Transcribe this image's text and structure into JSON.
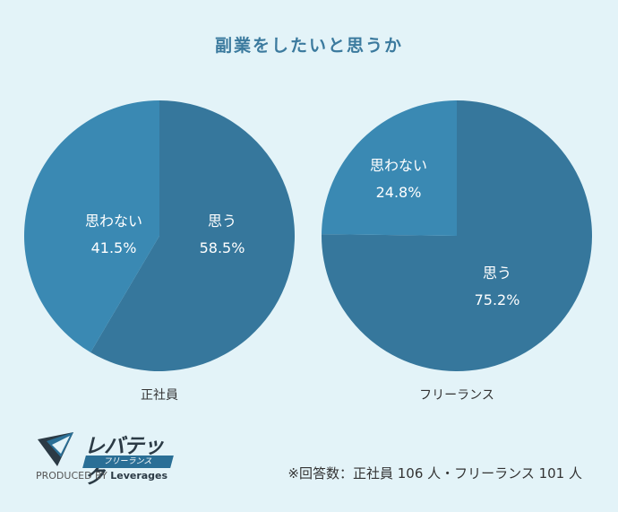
{
  "title": "副業をしたいと思うか",
  "chart_data": [
    {
      "type": "pie",
      "title": "正社員",
      "slices": [
        {
          "label": "思う",
          "value": 58.5,
          "display": "58.5%",
          "color": "#36779c"
        },
        {
          "label": "思わない",
          "value": 41.5,
          "display": "41.5%",
          "color": "#3a89b3"
        }
      ]
    },
    {
      "type": "pie",
      "title": "フリーランス",
      "slices": [
        {
          "label": "思う",
          "value": 75.2,
          "display": "75.2%",
          "color": "#36779c"
        },
        {
          "label": "思わない",
          "value": 24.8,
          "display": "24.8%",
          "color": "#3a89b3"
        }
      ]
    }
  ],
  "logo": {
    "name": "レバテック",
    "sub": "フリーランス",
    "produced_prefix": "PRODUCED BY",
    "produced_brand": "Leverages"
  },
  "footnote": "※回答数：正社員 106 人・フリーランス 101 人"
}
